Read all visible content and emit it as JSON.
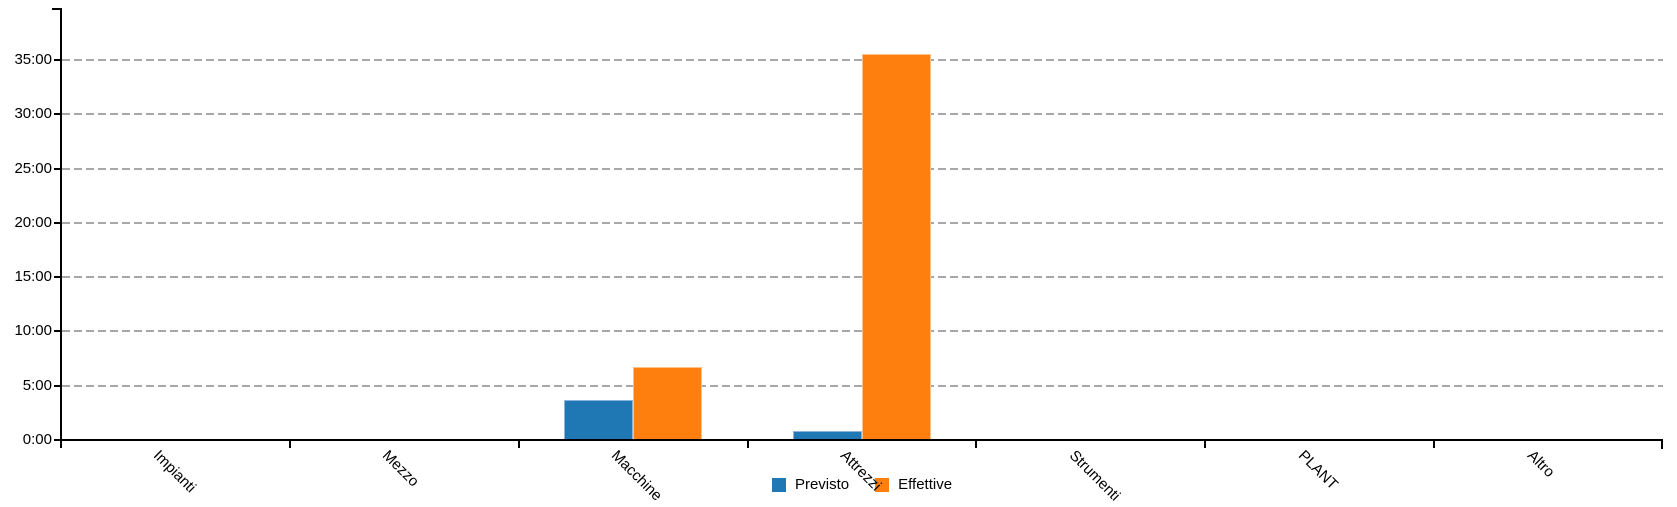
{
  "chart_data": {
    "type": "bar",
    "title": "",
    "xlabel": "",
    "ylabel": "",
    "categories": [
      "Impianti",
      "Mezzo",
      "Macchine",
      "Attrezzi",
      "Strumenti",
      "PLANT",
      "Altro"
    ],
    "categories_visible_truncated": [
      "Impiant",
      "Mezzo",
      "Macchin",
      "Attrezzi",
      "Strumen",
      "PLANT",
      "Altro"
    ],
    "series": [
      {
        "name": "Previsto",
        "color": "#1F77B4",
        "border_color": "#8AB4D9",
        "hours": [
          0,
          0,
          3.58,
          0.75,
          0,
          0,
          0
        ],
        "hhmm": [
          "0:00",
          "0:00",
          "3:35",
          "0:45",
          "0:00",
          "0:00",
          "0:00"
        ]
      },
      {
        "name": "Effettive",
        "color": "#FF7F0E",
        "border_color": "#FFC08A",
        "hours": [
          0,
          0,
          6.67,
          35.5,
          0,
          0,
          0
        ],
        "hhmm": [
          "0:00",
          "0:00",
          "6:40",
          "35:30",
          "0:00",
          "0:00",
          "0:00"
        ]
      }
    ],
    "y_axis": {
      "format": "h:mm",
      "tick_labels": [
        "0:00",
        "5:00",
        "10:00",
        "15:00",
        "20:00",
        "25:00",
        "30:00",
        "35:00"
      ],
      "min_hours": 0,
      "max_tick_hours": 35,
      "step_hours": 5
    },
    "x_axis": {
      "label_rotation_deg": 45
    },
    "legend": {
      "position": "bottom-center",
      "items": [
        "Previsto",
        "Effettive"
      ]
    },
    "grid": {
      "style": "dashed",
      "horizontal": true,
      "color": "#A8A8A8"
    },
    "axis_color": "#000000",
    "background": "#FFFFFF"
  }
}
